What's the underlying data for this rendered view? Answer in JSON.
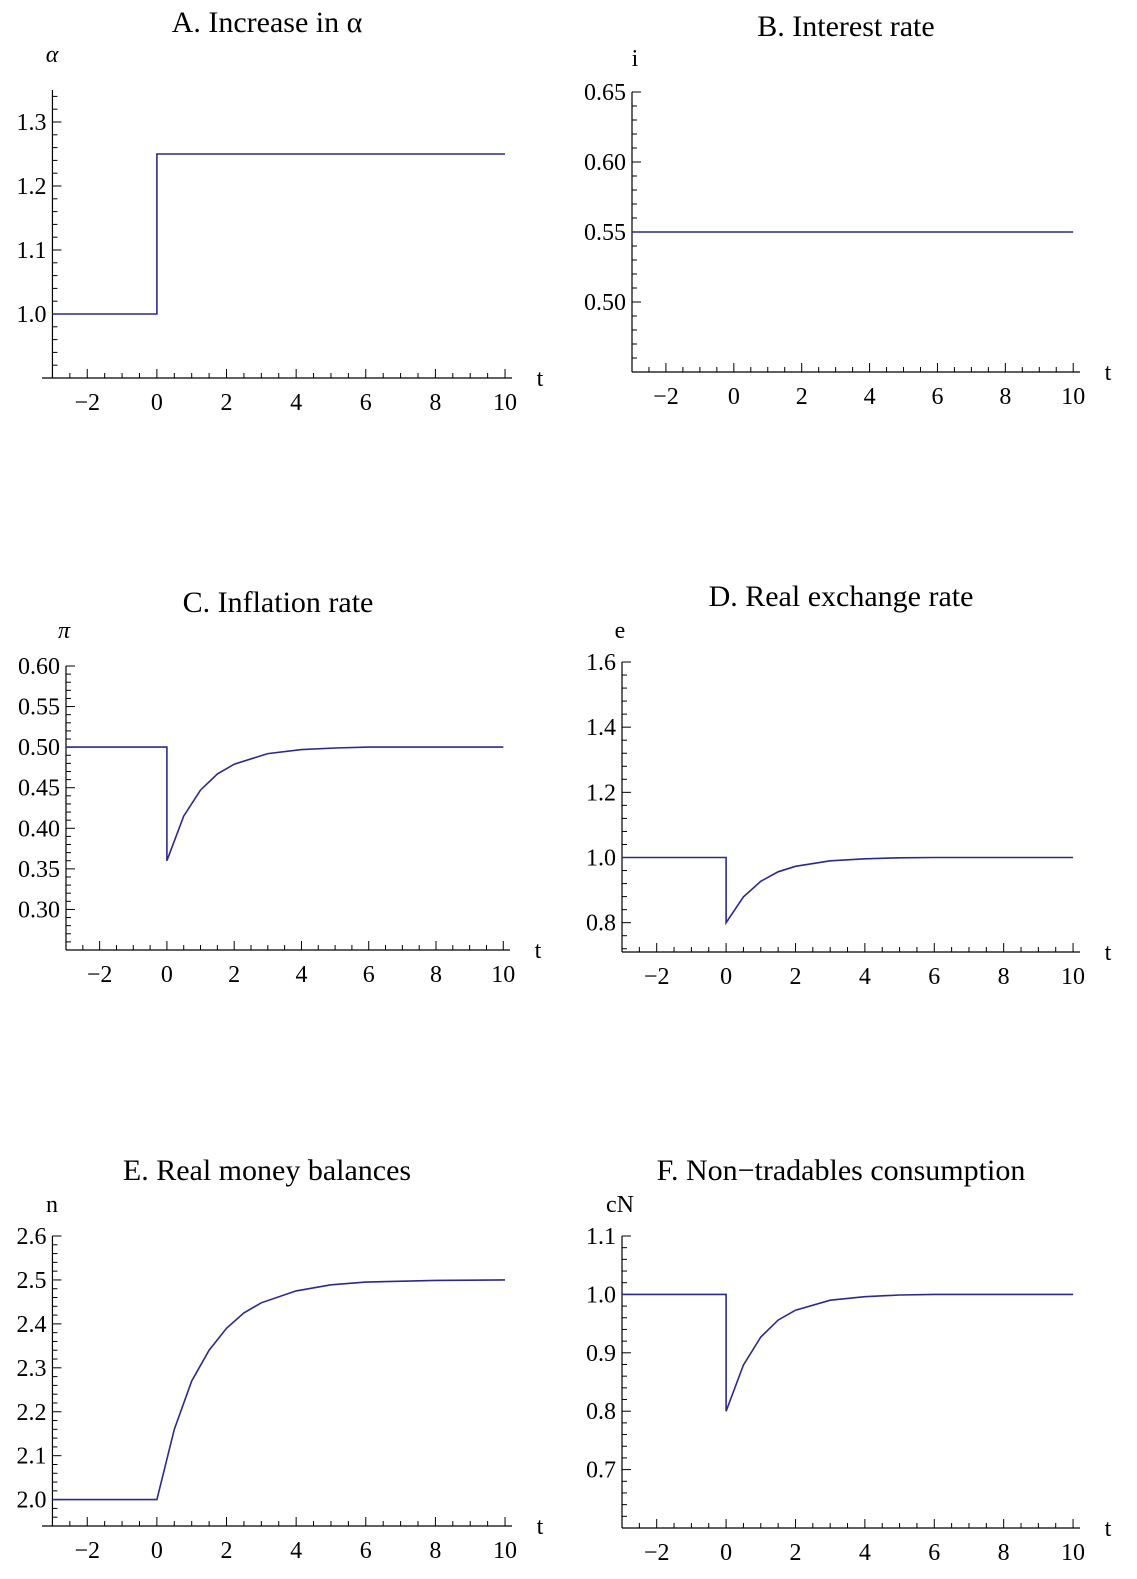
{
  "chart_data": [
    {
      "type": "line",
      "title": "A. Increase in α",
      "ylabel": "α",
      "xlabel": "t",
      "xlim": [
        -3.3,
        10.2
      ],
      "ylim": [
        0.9,
        1.35
      ],
      "xticks": [
        -2,
        0,
        2,
        4,
        6,
        8,
        10
      ],
      "yticks": [
        1.0,
        1.1,
        1.2,
        1.3
      ],
      "ytick_labels": [
        "1.0",
        "1.1",
        "1.2",
        "1.3"
      ],
      "series": [
        {
          "x": [
            -3.3,
            0,
            0,
            10
          ],
          "y": [
            1.0,
            1.0,
            1.25,
            1.25
          ]
        }
      ]
    },
    {
      "type": "line",
      "title": "B. Interest rate",
      "ylabel": "i",
      "xlabel": "t",
      "xlim": [
        -3.0,
        10.2
      ],
      "ylim": [
        0.45,
        0.65
      ],
      "xticks": [
        -2,
        0,
        2,
        4,
        6,
        8,
        10
      ],
      "yticks": [
        0.5,
        0.55,
        0.6,
        0.65
      ],
      "ytick_labels": [
        "0.50",
        "0.55",
        "0.60",
        "0.65"
      ],
      "series": [
        {
          "x": [
            -3.0,
            10
          ],
          "y": [
            0.55,
            0.55
          ]
        }
      ]
    },
    {
      "type": "line",
      "title": "C. Inflation rate",
      "ylabel": "π",
      "xlabel": "t",
      "xlim": [
        -3.0,
        10.2
      ],
      "ylim": [
        0.25,
        0.6
      ],
      "xticks": [
        -2,
        0,
        2,
        4,
        6,
        8,
        10
      ],
      "yticks": [
        0.3,
        0.35,
        0.4,
        0.45,
        0.5,
        0.55,
        0.6
      ],
      "ytick_labels": [
        "0.30",
        "0.35",
        "0.40",
        "0.45",
        "0.50",
        "0.55",
        "0.60"
      ],
      "series": [
        {
          "x": [
            -3.0,
            0,
            0,
            0.5,
            1,
            1.5,
            2,
            3,
            4,
            5,
            6,
            8,
            10
          ],
          "y": [
            0.5,
            0.5,
            0.36,
            0.415,
            0.447,
            0.467,
            0.479,
            0.492,
            0.497,
            0.499,
            0.5,
            0.5,
            0.5
          ]
        }
      ]
    },
    {
      "type": "line",
      "title": "D. Real exchange rate",
      "ylabel": "e",
      "xlabel": "t",
      "xlim": [
        -3.0,
        10.2
      ],
      "ylim": [
        0.71,
        1.6
      ],
      "xticks": [
        -2,
        0,
        2,
        4,
        6,
        8,
        10
      ],
      "yticks": [
        0.8,
        1.0,
        1.2,
        1.4,
        1.6
      ],
      "ytick_labels": [
        "0.8",
        "1.0",
        "1.2",
        "1.4",
        "1.6"
      ],
      "series": [
        {
          "x": [
            -3.0,
            0,
            0,
            0.5,
            1,
            1.5,
            2,
            3,
            4,
            5,
            6,
            8,
            10
          ],
          "y": [
            1.0,
            1.0,
            0.8,
            0.879,
            0.927,
            0.956,
            0.973,
            0.99,
            0.996,
            0.999,
            1.0,
            1.0,
            1.0
          ]
        }
      ]
    },
    {
      "type": "line",
      "title": "E. Real money balances",
      "ylabel": "n",
      "xlabel": "t",
      "xlim": [
        -3.3,
        10.2
      ],
      "ylim": [
        1.94,
        2.6
      ],
      "xticks": [
        -2,
        0,
        2,
        4,
        6,
        8,
        10
      ],
      "yticks": [
        2.0,
        2.1,
        2.2,
        2.3,
        2.4,
        2.5,
        2.6
      ],
      "ytick_labels": [
        "2.0",
        "2.1",
        "2.2",
        "2.3",
        "2.4",
        "2.5",
        "2.6"
      ],
      "series": [
        {
          "x": [
            -3.3,
            0,
            0.5,
            1,
            1.5,
            2,
            2.5,
            3,
            4,
            5,
            6,
            8,
            10
          ],
          "y": [
            2.0,
            2.0,
            2.16,
            2.27,
            2.34,
            2.39,
            2.425,
            2.448,
            2.475,
            2.489,
            2.495,
            2.499,
            2.5
          ]
        }
      ]
    },
    {
      "type": "line",
      "title": "F. Non−tradables consumption",
      "ylabel": "cN",
      "xlabel": "t",
      "xlim": [
        -3.0,
        10.2
      ],
      "ylim": [
        0.6,
        1.1
      ],
      "xticks": [
        -2,
        0,
        2,
        4,
        6,
        8,
        10
      ],
      "yticks": [
        0.7,
        0.8,
        0.9,
        1.0,
        1.1
      ],
      "ytick_labels": [
        "0.7",
        "0.8",
        "0.9",
        "1.0",
        "1.1"
      ],
      "series": [
        {
          "x": [
            -3.0,
            0,
            0,
            0.5,
            1,
            1.5,
            2,
            3,
            4,
            5,
            6,
            8,
            10
          ],
          "y": [
            1.0,
            1.0,
            0.8,
            0.879,
            0.927,
            0.956,
            0.973,
            0.99,
            0.996,
            0.999,
            1.0,
            1.0,
            1.0
          ]
        }
      ]
    }
  ]
}
